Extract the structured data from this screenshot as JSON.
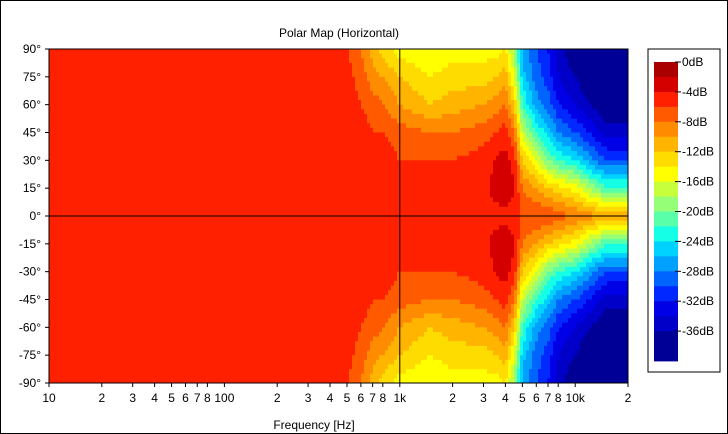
{
  "chart_data": {
    "type": "heatmap",
    "title": "Polar Map (Horizontal)",
    "xlabel": "Frequency [Hz]",
    "ylabel": "",
    "x_scale": "log",
    "xlim": [
      10,
      20000
    ],
    "ylim": [
      -90,
      90
    ],
    "y_unit": "°",
    "x_tick_values": [
      10,
      20,
      30,
      40,
      50,
      60,
      70,
      80,
      100,
      200,
      300,
      400,
      500,
      600,
      700,
      800,
      1000,
      2000,
      3000,
      4000,
      5000,
      6000,
      7000,
      8000,
      10000,
      20000
    ],
    "x_tick_labels": [
      "10",
      "2",
      "3",
      "4",
      "5",
      "6",
      "7",
      "8",
      "100",
      "2",
      "3",
      "4",
      "5",
      "6",
      "7",
      "8",
      "1k",
      "2",
      "3",
      "4",
      "5",
      "6",
      "7",
      "8",
      "10k",
      "2"
    ],
    "y_tick_values": [
      90,
      75,
      60,
      45,
      30,
      15,
      0,
      -15,
      -30,
      -45,
      -60,
      -75,
      -90
    ],
    "y_tick_labels": [
      "90°",
      "75°",
      "60°",
      "45°",
      "30°",
      "15°",
      "0°",
      "-15°",
      "-30°",
      "-45°",
      "-60°",
      "-75°",
      "-90°"
    ],
    "crosshair": {
      "x": 1000,
      "y": 0
    },
    "legend": {
      "placement": "right",
      "labels": [
        "0dB",
        "-4dB",
        "-8dB",
        "-12dB",
        "-16dB",
        "-20dB",
        "-24dB",
        "-28dB",
        "-32dB",
        "-36dB"
      ],
      "label_levels": [
        0,
        -4,
        -8,
        -12,
        -16,
        -20,
        -24,
        -28,
        -32,
        -36
      ],
      "bands": [
        {
          "hi": 0,
          "lo": -2,
          "color": "#aa0000"
        },
        {
          "hi": -2,
          "lo": -4,
          "color": "#d40000"
        },
        {
          "hi": -4,
          "lo": -6,
          "color": "#ff2000"
        },
        {
          "hi": -6,
          "lo": -8,
          "color": "#ff5a00"
        },
        {
          "hi": -8,
          "lo": -10,
          "color": "#ff8c00"
        },
        {
          "hi": -10,
          "lo": -12,
          "color": "#ffb400"
        },
        {
          "hi": -12,
          "lo": -14,
          "color": "#ffdc00"
        },
        {
          "hi": -14,
          "lo": -16,
          "color": "#ffff00"
        },
        {
          "hi": -16,
          "lo": -18,
          "color": "#c8ff3c"
        },
        {
          "hi": -18,
          "lo": -20,
          "color": "#96ff78"
        },
        {
          "hi": -20,
          "lo": -22,
          "color": "#5affaa"
        },
        {
          "hi": -22,
          "lo": -24,
          "color": "#14ffe6"
        },
        {
          "hi": -24,
          "lo": -26,
          "color": "#00d2ff"
        },
        {
          "hi": -26,
          "lo": -28,
          "color": "#00a0ff"
        },
        {
          "hi": -28,
          "lo": -30,
          "color": "#0064ff"
        },
        {
          "hi": -30,
          "lo": -32,
          "color": "#0028ff"
        },
        {
          "hi": -32,
          "lo": -34,
          "color": "#0000e6"
        },
        {
          "hi": -34,
          "lo": -36,
          "color": "#0000c8"
        },
        {
          "hi": -36,
          "lo": -40,
          "color": "#000096"
        }
      ]
    },
    "map_data": {
      "frequencies": [
        10,
        100,
        300,
        500,
        600,
        700,
        800,
        1000,
        1500,
        2000,
        3000,
        3500,
        4000,
        4500,
        5000,
        6000,
        7000,
        8000,
        10000,
        12000,
        15000,
        20000
      ],
      "angles": [
        0,
        15,
        30,
        45,
        60,
        75,
        90
      ],
      "levels_db": [
        [
          -5,
          -5,
          -5,
          -5,
          -5,
          -5,
          -5
        ],
        [
          -5,
          -5,
          -5,
          -5,
          -5,
          -5,
          -5
        ],
        [
          -5,
          -5,
          -5,
          -5,
          -5,
          -5,
          -5
        ],
        [
          -5,
          -5,
          -5,
          -5,
          -5,
          -5,
          -6
        ],
        [
          -5,
          -5,
          -5,
          -5,
          -6,
          -7,
          -8
        ],
        [
          -5,
          -5,
          -5,
          -6,
          -7,
          -9,
          -11
        ],
        [
          -5,
          -5,
          -5,
          -6,
          -8,
          -10,
          -13
        ],
        [
          -5,
          -5,
          -6,
          -7,
          -10,
          -12,
          -15
        ],
        [
          -5,
          -5,
          -6,
          -8,
          -12,
          -14,
          -16
        ],
        [
          -5,
          -5,
          -6,
          -8,
          -11,
          -13,
          -15
        ],
        [
          -5,
          -5,
          -5,
          -7,
          -10,
          -13,
          -15
        ],
        [
          -5,
          -3,
          -4,
          -6,
          -9,
          -12,
          -15
        ],
        [
          -5,
          -2,
          -3,
          -5,
          -8,
          -11,
          -14
        ],
        [
          -5,
          -4,
          -5,
          -8,
          -12,
          -16,
          -19
        ],
        [
          -6,
          -8,
          -12,
          -17,
          -22,
          -25,
          -27
        ],
        [
          -6,
          -10,
          -16,
          -22,
          -27,
          -29,
          -30
        ],
        [
          -6,
          -12,
          -20,
          -25,
          -29,
          -31,
          -32
        ],
        [
          -7,
          -13,
          -22,
          -28,
          -32,
          -34,
          -35
        ],
        [
          -8,
          -15,
          -24,
          -30,
          -34,
          -36,
          -38
        ],
        [
          -9,
          -18,
          -27,
          -32,
          -36,
          -38,
          -39
        ],
        [
          -10,
          -22,
          -30,
          -35,
          -38,
          -39,
          -40
        ],
        [
          -10,
          -22,
          -30,
          -35,
          -38,
          -39,
          -40
        ]
      ]
    }
  }
}
